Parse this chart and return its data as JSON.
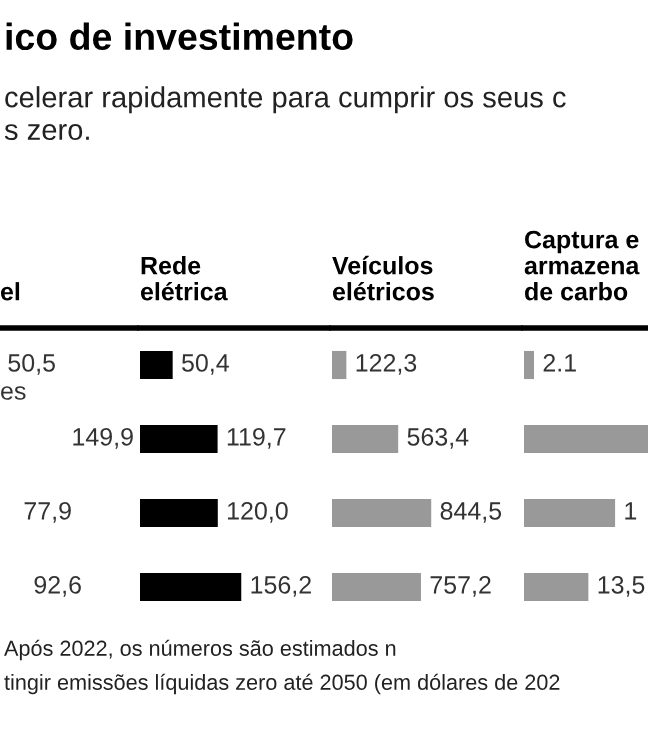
{
  "chart_data": [
    {
      "type": "other",
      "title": "ico de investimento",
      "subtitle": "celerar rapidamente para cumprir os seus c\ns zero.",
      "xlabel": "el",
      "categories": [
        null,
        null,
        null,
        null
      ],
      "values": [
        50.5,
        149.9,
        77.9,
        92.6
      ],
      "value_labels": [
        "50,5",
        "149,9",
        "77,9",
        "92,6"
      ],
      "annotations": [
        "es",
        "Após 2022, os números são estimados n",
        "tingir emissões líquidas zero até 2050 (em dólares de 202"
      ]
    },
    {
      "type": "bar",
      "orientation": "horizontal",
      "xlabel": "Rede\nelétrica",
      "categories": [
        null,
        null,
        null,
        null
      ],
      "values": [
        50.4,
        119.7,
        120.0,
        156.2
      ],
      "value_labels": [
        "50,4",
        "119,7",
        "120,0",
        "156,2"
      ],
      "color": "#000000",
      "xlim": [
        0,
        290
      ],
      "tick_labels": false
    },
    {
      "type": "bar",
      "orientation": "horizontal",
      "xlabel": "Veículos\nelétricos",
      "categories": [
        null,
        null,
        null,
        null
      ],
      "values": [
        122.3,
        563.4,
        844.5,
        757.2
      ],
      "value_labels": [
        "122,3",
        "563,4",
        "844,5",
        "757,2"
      ],
      "color": "#999999",
      "xlim": [
        0,
        1600
      ],
      "tick_labels": false
    },
    {
      "type": "bar",
      "orientation": "horizontal",
      "xlabel": "Captura e\narmazena\nde carbo",
      "categories": [
        null,
        null,
        null,
        null
      ],
      "values": [
        2.1,
        26,
        19.1,
        13.5
      ],
      "value_labels": [
        "2.1",
        null,
        null,
        "13,5"
      ],
      "annotations": [
        "1"
      ],
      "color": "#999999",
      "xlim": [
        0,
        26
      ],
      "tick_labels": false
    }
  ]
}
